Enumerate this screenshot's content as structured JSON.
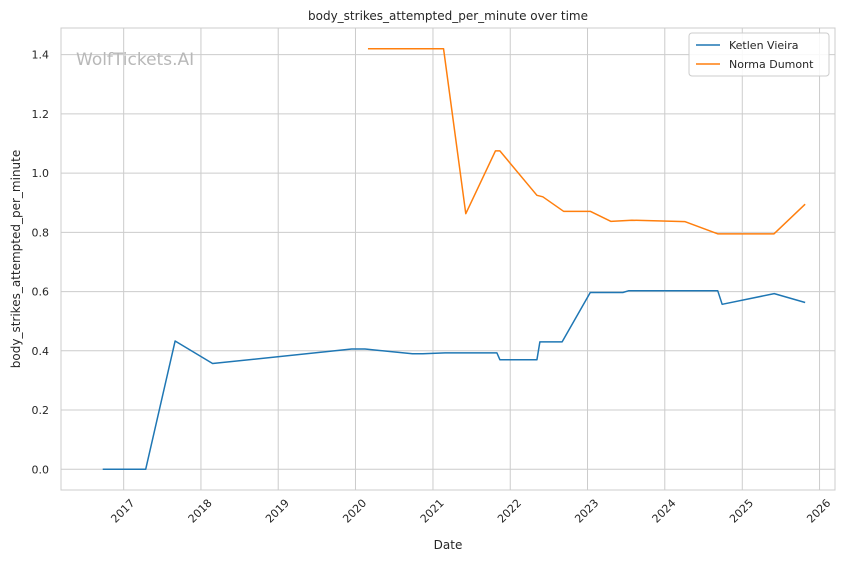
{
  "chart_data": {
    "type": "line",
    "title": "body_strikes_attempted_per_minute over time",
    "xlabel": "Date",
    "ylabel": "body_strikes_attempted_per_minute",
    "watermark": "WolfTickets.AI",
    "xlim": [
      "2016-03-11",
      "2026-03-15"
    ],
    "ylim": [
      -0.07,
      1.49
    ],
    "x_ticks": [
      "2017",
      "2018",
      "2019",
      "2020",
      "2021",
      "2022",
      "2023",
      "2024",
      "2025",
      "2026"
    ],
    "y_ticks": [
      0.0,
      0.2,
      0.4,
      0.6,
      0.8,
      1.0,
      1.2,
      1.4
    ],
    "y_tick_labels": [
      "0.0",
      "0.2",
      "0.4",
      "0.6",
      "0.8",
      "1.0",
      "1.2",
      "1.4"
    ],
    "grid": true,
    "legend_position": "top-right",
    "series": [
      {
        "name": "Ketlen Vieira",
        "color": "#1f77b4",
        "points": [
          [
            "2016-09-24",
            0.0
          ],
          [
            "2017-04-15",
            0.0
          ],
          [
            "2017-09-01",
            0.433
          ],
          [
            "2018-02-25",
            0.357
          ],
          [
            "2019-12-14",
            0.406
          ],
          [
            "2020-02-15",
            0.406
          ],
          [
            "2020-09-26",
            0.39
          ],
          [
            "2020-11-14",
            0.39
          ],
          [
            "2021-02-27",
            0.393
          ],
          [
            "2021-10-30",
            0.393
          ],
          [
            "2021-11-13",
            0.37
          ],
          [
            "2022-05-07",
            0.37
          ],
          [
            "2022-05-21",
            0.43
          ],
          [
            "2022-09-03",
            0.43
          ],
          [
            "2023-01-14",
            0.597
          ],
          [
            "2023-06-17",
            0.597
          ],
          [
            "2023-07-15",
            0.603
          ],
          [
            "2024-09-07",
            0.603
          ],
          [
            "2024-09-28",
            0.557
          ],
          [
            "2025-06-01",
            0.593
          ],
          [
            "2025-10-25",
            0.563
          ]
        ]
      },
      {
        "name": "Norma Dumont",
        "color": "#ff7f0e",
        "points": [
          [
            "2020-02-29",
            1.42
          ],
          [
            "2021-02-20",
            1.42
          ],
          [
            "2021-06-05",
            0.863
          ],
          [
            "2021-10-23",
            1.075
          ],
          [
            "2021-11-13",
            1.075
          ],
          [
            "2022-05-07",
            0.925
          ],
          [
            "2022-06-04",
            0.92
          ],
          [
            "2022-09-10",
            0.871
          ],
          [
            "2023-01-14",
            0.871
          ],
          [
            "2023-04-22",
            0.837
          ],
          [
            "2023-07-29",
            0.841
          ],
          [
            "2024-04-06",
            0.836
          ],
          [
            "2024-09-07",
            0.795
          ],
          [
            "2025-05-31",
            0.795
          ],
          [
            "2025-10-25",
            0.895
          ]
        ]
      }
    ]
  }
}
